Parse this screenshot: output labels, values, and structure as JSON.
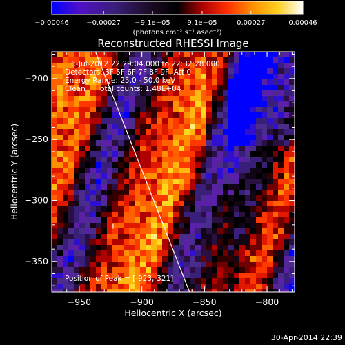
{
  "chart_data": {
    "type": "heatmap",
    "title": "Reconstructed RHESSI Image",
    "xlabel": "Heliocentric X (arcsec)",
    "ylabel": "Heliocentric Y (arcsec)",
    "xlim": [
      -972,
      -778
    ],
    "ylim": [
      -375,
      -178
    ],
    "x_ticks": [
      -950,
      -900,
      -850,
      -800
    ],
    "y_ticks": [
      -200,
      -250,
      -300,
      -350
    ],
    "x_tick_labels": [
      "−950",
      "−900",
      "−850",
      "−800"
    ],
    "y_tick_labels": [
      "−200",
      "−250",
      "−300",
      "−350"
    ],
    "colorbar": {
      "range": [
        -0.00046,
        0.00046
      ],
      "tick_values": [
        -0.00046,
        -0.00027,
        -9.1e-05,
        9.1e-05,
        0.00027,
        0.00046
      ],
      "tick_labels": [
        "−0.00046",
        "−0.00027",
        "−9.1e−05",
        "9.1e−05",
        "0.00027",
        "0.00046"
      ],
      "unit_label": "(photons cm⁻² s⁻¹ asec⁻²)",
      "colormap": [
        "#0000ff",
        "#5010c8",
        "#3a1f7a",
        "#1a0a20",
        "#000000",
        "#b00000",
        "#ff3000",
        "#ff9000",
        "#ffd020",
        "#ffffff"
      ]
    },
    "limb_line": {
      "x": [
        -937,
        -862
      ],
      "y": [
        -178,
        -375
      ]
    },
    "peak": {
      "x": -923,
      "y": -321
    },
    "grid": false
  },
  "annotations": {
    "time_range": "6-Jul-2012 22:29:04.000 to 22:32:28.000",
    "detectors": "Detectors: 3F 5F 6F 7F 8F 9F, Att 0",
    "energy": "Energy Range: 25.0 - 50.0 keV",
    "clean": "Clean     Total counts: 1.48E+04",
    "peak_label": "Position of Peak = [-923,-321]"
  },
  "footer_timestamp": "30-Apr-2014 22:39"
}
